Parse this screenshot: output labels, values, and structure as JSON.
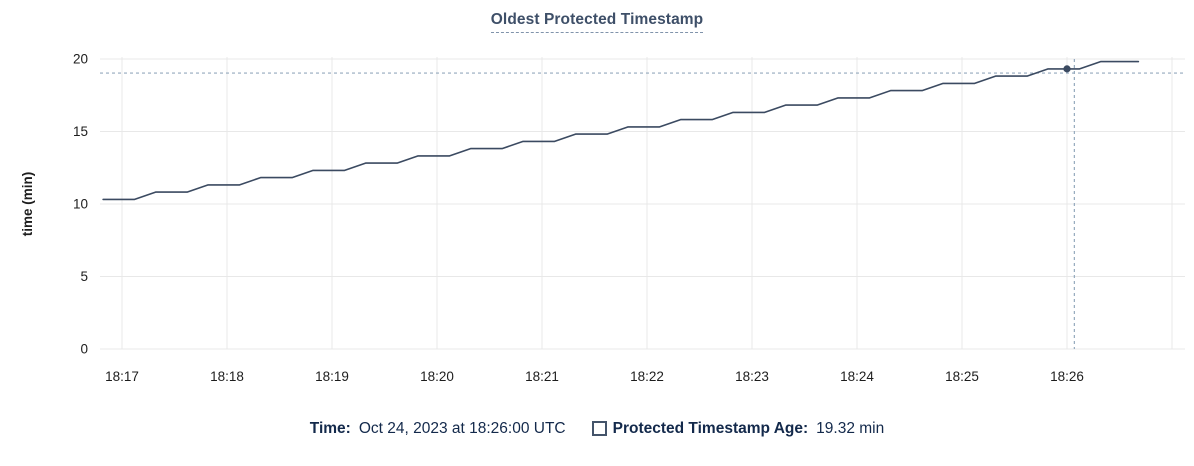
{
  "title": {
    "text": "Oldest Protected Timestamp"
  },
  "legend": {
    "time_label": "Time:",
    "time_value": "Oct 24, 2023 at 18:26:00 UTC",
    "series_label": "Protected Timestamp Age:",
    "series_value": "19.32 min"
  },
  "colors": {
    "title": "#3e4f68",
    "title_underline": "#8093ab",
    "line": "#3b4a61",
    "dot": "#3b4a61",
    "grid": "#e8e8e8",
    "axis_text": "#1d1d1d",
    "crosshair": "#94a9bd",
    "legend_text": "#13294b",
    "checkbox_border": "#44546a"
  },
  "chart_data": {
    "type": "line",
    "title": "Oldest Protected Timestamp",
    "xlabel": "",
    "ylabel": "time (min)",
    "ylim": [
      0,
      20
    ],
    "yticks": [
      0,
      5,
      10,
      15,
      20
    ],
    "xtick_labels": [
      "18:17",
      "18:18",
      "18:19",
      "18:20",
      "18:21",
      "18:22",
      "18:23",
      "18:24",
      "18:25",
      "18:26"
    ],
    "xtick_minutes": [
      0,
      1,
      2,
      3,
      4,
      5,
      6,
      7,
      8,
      9
    ],
    "grid": true,
    "legend_position": "bottom",
    "series": [
      {
        "name": "Protected Timestamp Age",
        "unit": "min",
        "points_min_after_1817": [
          [
            -0.18,
            10.32
          ],
          [
            0.12,
            10.32
          ],
          [
            0.32,
            10.82
          ],
          [
            0.62,
            10.82
          ],
          [
            0.82,
            11.32
          ],
          [
            1.12,
            11.32
          ],
          [
            1.32,
            11.82
          ],
          [
            1.62,
            11.82
          ],
          [
            1.82,
            12.32
          ],
          [
            2.12,
            12.32
          ],
          [
            2.32,
            12.82
          ],
          [
            2.62,
            12.82
          ],
          [
            2.82,
            13.32
          ],
          [
            3.12,
            13.32
          ],
          [
            3.32,
            13.82
          ],
          [
            3.62,
            13.82
          ],
          [
            3.82,
            14.32
          ],
          [
            4.12,
            14.32
          ],
          [
            4.32,
            14.82
          ],
          [
            4.62,
            14.82
          ],
          [
            4.82,
            15.32
          ],
          [
            5.12,
            15.32
          ],
          [
            5.32,
            15.82
          ],
          [
            5.62,
            15.82
          ],
          [
            5.82,
            16.32
          ],
          [
            6.12,
            16.32
          ],
          [
            6.32,
            16.82
          ],
          [
            6.62,
            16.82
          ],
          [
            6.82,
            17.32
          ],
          [
            7.12,
            17.32
          ],
          [
            7.32,
            17.82
          ],
          [
            7.62,
            17.82
          ],
          [
            7.82,
            18.32
          ],
          [
            8.12,
            18.32
          ],
          [
            8.32,
            18.82
          ],
          [
            8.62,
            18.82
          ],
          [
            8.82,
            19.32
          ],
          [
            9.12,
            19.32
          ],
          [
            9.32,
            19.82
          ],
          [
            9.68,
            19.82
          ]
        ]
      }
    ],
    "cursor": {
      "time_label": "Oct 24, 2023 at 18:26:00 UTC",
      "snap_minute": 9.0,
      "value": 19.32,
      "cursor_minute": 9.07,
      "cursor_value": 19.03
    }
  }
}
